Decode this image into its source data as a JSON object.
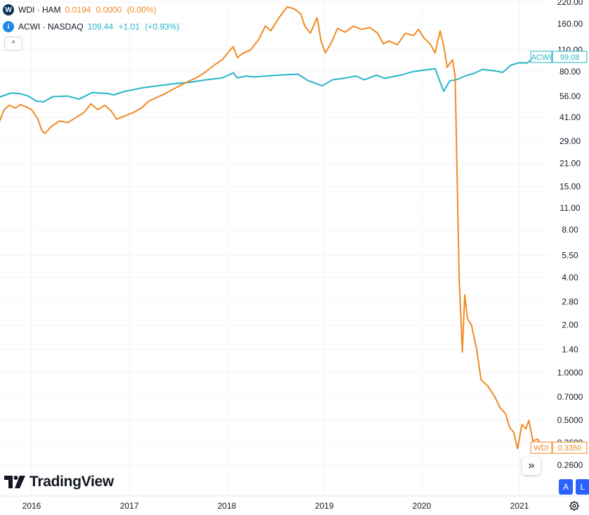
{
  "legend": [
    {
      "badge_text": "W",
      "badge_color": "#0b3558",
      "name": "WDI · HAM",
      "price": "0.0194",
      "change": "0.0000",
      "change_pct": "(0.00%)",
      "color": "#f08a24"
    },
    {
      "badge_text": "i",
      "badge_color": "#1e88e5",
      "name": "ACWI · NASDAQ",
      "price": "109.44",
      "change": "+1.01",
      "change_pct": "(+0.93%)",
      "color": "#26b5c9"
    }
  ],
  "branding": {
    "logo_text": "TradingView"
  },
  "buttons": {
    "auto_scale": "A",
    "log_scale": "L",
    "scroll_label": "»",
    "collapse_label": "^"
  },
  "chart_data": {
    "type": "line",
    "y_scale": "log",
    "grid": true,
    "y_ticks": [
      "220.00",
      "160.00",
      "110.00",
      "80.00",
      "56.00",
      "41.00",
      "29.00",
      "21.00",
      "15.00",
      "11.00",
      "8.00",
      "5.50",
      "4.00",
      "2.80",
      "2.00",
      "1.40",
      "1.0000",
      "0.7000",
      "0.5000",
      "0.3600",
      "0.2600"
    ],
    "x_ticks": [
      "2016",
      "2017",
      "2018",
      "2019",
      "2020",
      "2021"
    ],
    "price_tags": [
      {
        "label": "ACWI",
        "value": "99.08",
        "series": 1
      },
      {
        "label": "WDI",
        "value": "0.3350",
        "series": 0
      }
    ],
    "series": [
      {
        "name": "WDI",
        "color": "#f08a24",
        "values": [
          [
            "2015-09-01",
            38.0
          ],
          [
            "2015-09-20",
            46.0
          ],
          [
            "2015-10-10",
            49.0
          ],
          [
            "2015-11-01",
            47.0
          ],
          [
            "2015-11-20",
            49.5
          ],
          [
            "2015-12-10",
            48.0
          ],
          [
            "2016-01-01",
            46.0
          ],
          [
            "2016-01-25",
            40.0
          ],
          [
            "2016-02-08",
            34.0
          ],
          [
            "2016-02-20",
            32.5
          ],
          [
            "2016-03-15",
            36.0
          ],
          [
            "2016-04-15",
            39.0
          ],
          [
            "2016-05-15",
            38.0
          ],
          [
            "2016-06-15",
            41.0
          ],
          [
            "2016-07-15",
            44.0
          ],
          [
            "2016-08-10",
            50.0
          ],
          [
            "2016-09-05",
            46.0
          ],
          [
            "2016-10-01",
            49.0
          ],
          [
            "2016-10-25",
            45.0
          ],
          [
            "2016-11-15",
            40.0
          ],
          [
            "2016-12-15",
            42.0
          ],
          [
            "2017-01-15",
            44.0
          ],
          [
            "2017-02-15",
            47.0
          ],
          [
            "2017-03-15",
            52.0
          ],
          [
            "2017-04-15",
            55.0
          ],
          [
            "2017-05-15",
            58.0
          ],
          [
            "2017-06-15",
            62.0
          ],
          [
            "2017-07-15",
            66.0
          ],
          [
            "2017-08-15",
            70.0
          ],
          [
            "2017-09-15",
            74.0
          ],
          [
            "2017-10-15",
            80.0
          ],
          [
            "2017-11-15",
            88.0
          ],
          [
            "2017-12-15",
            95.0
          ],
          [
            "2018-01-10",
            108.0
          ],
          [
            "2018-01-25",
            115.0
          ],
          [
            "2018-02-10",
            98.0
          ],
          [
            "2018-03-01",
            104.0
          ],
          [
            "2018-04-01",
            110.0
          ],
          [
            "2018-05-01",
            128.0
          ],
          [
            "2018-05-25",
            155.0
          ],
          [
            "2018-06-15",
            145.0
          ],
          [
            "2018-07-15",
            175.0
          ],
          [
            "2018-08-15",
            205.0
          ],
          [
            "2018-09-10",
            200.0
          ],
          [
            "2018-10-05",
            185.0
          ],
          [
            "2018-10-20",
            155.0
          ],
          [
            "2018-11-10",
            140.0
          ],
          [
            "2018-12-05",
            175.0
          ],
          [
            "2018-12-20",
            125.0
          ],
          [
            "2019-01-05",
            105.0
          ],
          [
            "2019-01-25",
            120.0
          ],
          [
            "2019-02-20",
            150.0
          ],
          [
            "2019-03-20",
            142.0
          ],
          [
            "2019-04-20",
            155.0
          ],
          [
            "2019-05-20",
            148.0
          ],
          [
            "2019-06-20",
            152.0
          ],
          [
            "2019-07-20",
            140.0
          ],
          [
            "2019-08-10",
            120.0
          ],
          [
            "2019-09-01",
            125.0
          ],
          [
            "2019-10-01",
            118.0
          ],
          [
            "2019-11-01",
            140.0
          ],
          [
            "2019-12-01",
            135.0
          ],
          [
            "2019-12-20",
            148.0
          ],
          [
            "2020-01-10",
            130.0
          ],
          [
            "2020-02-01",
            120.0
          ],
          [
            "2020-02-20",
            105.0
          ],
          [
            "2020-03-10",
            145.0
          ],
          [
            "2020-03-25",
            112.0
          ],
          [
            "2020-04-05",
            85.0
          ],
          [
            "2020-04-25",
            95.0
          ],
          [
            "2020-05-05",
            75.0
          ],
          [
            "2020-05-20",
            4.0
          ],
          [
            "2020-06-01",
            1.35
          ],
          [
            "2020-06-10",
            3.1
          ],
          [
            "2020-06-20",
            2.2
          ],
          [
            "2020-07-05",
            2.0
          ],
          [
            "2020-07-25",
            1.4
          ],
          [
            "2020-08-10",
            0.9
          ],
          [
            "2020-09-05",
            0.82
          ],
          [
            "2020-10-01",
            0.7
          ],
          [
            "2020-10-20",
            0.6
          ],
          [
            "2020-11-10",
            0.55
          ],
          [
            "2020-11-25",
            0.45
          ],
          [
            "2020-12-10",
            0.42
          ],
          [
            "2020-12-25",
            0.33
          ],
          [
            "2021-01-10",
            0.47
          ],
          [
            "2021-01-25",
            0.44
          ],
          [
            "2021-02-05",
            0.5
          ],
          [
            "2021-02-20",
            0.37
          ],
          [
            "2021-03-10",
            0.38
          ],
          [
            "2021-03-25",
            0.345
          ],
          [
            "2021-04-05",
            0.335
          ]
        ]
      },
      {
        "name": "ACWI",
        "color": "#26b5c9",
        "values": [
          [
            "2015-09-01",
            55.0
          ],
          [
            "2015-10-15",
            58.5
          ],
          [
            "2015-11-20",
            58.0
          ],
          [
            "2015-12-20",
            56.0
          ],
          [
            "2016-01-20",
            52.0
          ],
          [
            "2016-02-15",
            51.5
          ],
          [
            "2016-03-20",
            55.5
          ],
          [
            "2016-05-15",
            56.0
          ],
          [
            "2016-06-27",
            53.5
          ],
          [
            "2016-08-15",
            59.0
          ],
          [
            "2016-10-15",
            58.0
          ],
          [
            "2016-11-05",
            57.0
          ],
          [
            "2016-12-15",
            60.0
          ],
          [
            "2017-02-15",
            63.0
          ],
          [
            "2017-04-15",
            65.0
          ],
          [
            "2017-06-15",
            67.0
          ],
          [
            "2017-08-15",
            68.5
          ],
          [
            "2017-10-15",
            71.0
          ],
          [
            "2017-12-15",
            73.0
          ],
          [
            "2018-01-26",
            78.5
          ],
          [
            "2018-02-09",
            73.0
          ],
          [
            "2018-03-15",
            75.0
          ],
          [
            "2018-04-15",
            74.0
          ],
          [
            "2018-06-15",
            75.5
          ],
          [
            "2018-08-15",
            76.5
          ],
          [
            "2018-09-25",
            77.0
          ],
          [
            "2018-10-30",
            70.5
          ],
          [
            "2018-12-24",
            65.0
          ],
          [
            "2019-01-31",
            71.0
          ],
          [
            "2019-03-15",
            72.5
          ],
          [
            "2019-04-30",
            75.0
          ],
          [
            "2019-05-31",
            71.0
          ],
          [
            "2019-07-15",
            76.0
          ],
          [
            "2019-08-15",
            72.5
          ],
          [
            "2019-10-15",
            76.0
          ],
          [
            "2019-11-30",
            80.0
          ],
          [
            "2020-01-15",
            82.0
          ],
          [
            "2020-02-20",
            83.5
          ],
          [
            "2020-03-23",
            60.0
          ],
          [
            "2020-04-15",
            70.0
          ],
          [
            "2020-05-15",
            71.5
          ],
          [
            "2020-06-15",
            75.5
          ],
          [
            "2020-07-15",
            78.0
          ],
          [
            "2020-08-15",
            82.5
          ],
          [
            "2020-09-30",
            81.0
          ],
          [
            "2020-10-30",
            79.0
          ],
          [
            "2020-11-30",
            88.0
          ],
          [
            "2020-12-31",
            91.0
          ],
          [
            "2021-01-29",
            90.5
          ],
          [
            "2021-02-15",
            95.5
          ],
          [
            "2021-03-04",
            92.0
          ],
          [
            "2021-03-25",
            96.0
          ],
          [
            "2021-04-05",
            99.08
          ]
        ]
      }
    ]
  }
}
